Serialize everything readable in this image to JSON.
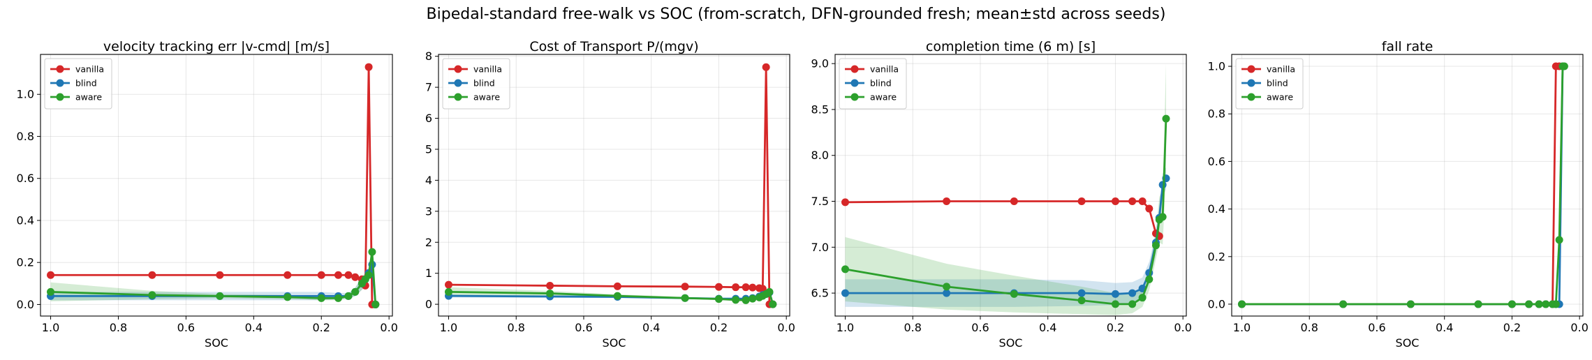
{
  "suptitle": "Bipedal-standard free-walk vs SOC (from-scratch, DFN-grounded fresh; mean±std across seeds)",
  "legend": [
    "vanilla",
    "blind",
    "aware"
  ],
  "colors": {
    "vanilla": "#d62728",
    "blind": "#1f77b4",
    "aware": "#2ca02c"
  },
  "chart_data": [
    {
      "type": "line",
      "title": "velocity tracking err |v-cmd| [m/s]",
      "xlabel": "SOC",
      "xlim": [
        1.03,
        -0.01
      ],
      "ylim": [
        -0.055,
        1.19
      ],
      "xticks": [
        1.0,
        0.8,
        0.6,
        0.4,
        0.2,
        0.0
      ],
      "xtick_labels": [
        "1.0",
        "0.8",
        "0.6",
        "0.4",
        "0.2",
        "0.0"
      ],
      "yticks": [
        0.0,
        0.2,
        0.4,
        0.6,
        0.8,
        1.0
      ],
      "ytick_labels": [
        "0.0",
        "0.2",
        "0.4",
        "0.6",
        "0.8",
        "1.0"
      ],
      "grid": true,
      "legend_position": "upper-left",
      "series": [
        {
          "name": "vanilla",
          "x": [
            1.0,
            0.7,
            0.5,
            0.3,
            0.2,
            0.15,
            0.12,
            0.1,
            0.08,
            0.07,
            0.06,
            0.05,
            0.04
          ],
          "y": [
            0.14,
            0.14,
            0.14,
            0.14,
            0.14,
            0.14,
            0.14,
            0.13,
            0.12,
            0.09,
            1.13,
            0.0,
            0.0
          ]
        },
        {
          "name": "blind",
          "x": [
            1.0,
            0.7,
            0.5,
            0.3,
            0.2,
            0.15,
            0.12,
            0.1,
            0.08,
            0.07,
            0.06,
            0.05,
            0.04
          ],
          "y": [
            0.04,
            0.04,
            0.04,
            0.04,
            0.04,
            0.04,
            0.04,
            0.06,
            0.1,
            0.12,
            0.15,
            0.19,
            0.0
          ],
          "band": [
            0.02,
            0.02,
            0.02,
            0.02,
            0.02,
            0.015,
            0.015,
            0.02,
            0.03,
            0.03,
            0.03,
            0.03,
            0.0
          ]
        },
        {
          "name": "aware",
          "x": [
            1.0,
            0.7,
            0.5,
            0.3,
            0.2,
            0.15,
            0.12,
            0.1,
            0.08,
            0.07,
            0.06,
            0.05,
            0.04
          ],
          "y": [
            0.06,
            0.045,
            0.04,
            0.035,
            0.03,
            0.03,
            0.04,
            0.06,
            0.1,
            0.12,
            0.14,
            0.25,
            0.0
          ],
          "band": [
            0.045,
            0.02,
            0.01,
            0.01,
            0.01,
            0.01,
            0.01,
            0.02,
            0.03,
            0.03,
            0.03,
            0.04,
            0.0
          ]
        }
      ]
    },
    {
      "type": "line",
      "title": "Cost of Transport P/(mgv)",
      "xlabel": "SOC",
      "xlim": [
        1.03,
        -0.01
      ],
      "ylim": [
        -0.38,
        8.06
      ],
      "xticks": [
        1.0,
        0.8,
        0.6,
        0.4,
        0.2,
        0.0
      ],
      "xtick_labels": [
        "1.0",
        "0.8",
        "0.6",
        "0.4",
        "0.2",
        "0.0"
      ],
      "yticks": [
        0,
        1,
        2,
        3,
        4,
        5,
        6,
        7,
        8
      ],
      "ytick_labels": [
        "0",
        "1",
        "2",
        "3",
        "4",
        "5",
        "6",
        "7",
        "8"
      ],
      "grid": true,
      "legend_position": "upper-left",
      "series": [
        {
          "name": "vanilla",
          "x": [
            1.0,
            0.7,
            0.5,
            0.3,
            0.2,
            0.15,
            0.12,
            0.1,
            0.08,
            0.07,
            0.06,
            0.05,
            0.04
          ],
          "y": [
            0.63,
            0.6,
            0.58,
            0.57,
            0.56,
            0.55,
            0.55,
            0.54,
            0.52,
            0.5,
            7.65,
            0.0,
            0.0
          ]
        },
        {
          "name": "blind",
          "x": [
            1.0,
            0.7,
            0.5,
            0.3,
            0.2,
            0.15,
            0.12,
            0.1,
            0.08,
            0.07,
            0.06,
            0.05,
            0.04
          ],
          "y": [
            0.27,
            0.25,
            0.24,
            0.2,
            0.18,
            0.18,
            0.18,
            0.2,
            0.25,
            0.3,
            0.33,
            0.38,
            0.0
          ],
          "band": [
            0.05,
            0.04,
            0.04,
            0.03,
            0.03,
            0.03,
            0.03,
            0.04,
            0.05,
            0.05,
            0.05,
            0.05,
            0.0
          ]
        },
        {
          "name": "aware",
          "x": [
            1.0,
            0.7,
            0.5,
            0.3,
            0.2,
            0.15,
            0.12,
            0.1,
            0.08,
            0.07,
            0.06,
            0.05,
            0.04
          ],
          "y": [
            0.4,
            0.35,
            0.27,
            0.2,
            0.17,
            0.14,
            0.13,
            0.18,
            0.22,
            0.27,
            0.33,
            0.4,
            0.0
          ],
          "band": [
            0.15,
            0.08,
            0.05,
            0.04,
            0.03,
            0.03,
            0.03,
            0.04,
            0.05,
            0.05,
            0.05,
            0.06,
            0.0
          ]
        }
      ]
    },
    {
      "type": "line",
      "title": "completion time (6 m) [s]",
      "xlabel": "SOC",
      "xlim": [
        1.03,
        -0.01
      ],
      "ylim": [
        6.25,
        9.1
      ],
      "xticks": [
        1.0,
        0.8,
        0.6,
        0.4,
        0.2,
        0.0
      ],
      "xtick_labels": [
        "1.0",
        "0.8",
        "0.6",
        "0.4",
        "0.2",
        "0.0"
      ],
      "yticks": [
        6.5,
        7.0,
        7.5,
        8.0,
        8.5,
        9.0
      ],
      "ytick_labels": [
        "6.5",
        "7.0",
        "7.5",
        "8.0",
        "8.5",
        "9.0"
      ],
      "grid": true,
      "legend_position": "upper-left",
      "series": [
        {
          "name": "vanilla",
          "x": [
            1.0,
            0.7,
            0.5,
            0.3,
            0.2,
            0.15,
            0.12,
            0.1,
            0.08,
            0.07
          ],
          "y": [
            7.49,
            7.5,
            7.5,
            7.5,
            7.5,
            7.5,
            7.5,
            7.42,
            7.15,
            7.12
          ]
        },
        {
          "name": "blind",
          "x": [
            1.0,
            0.7,
            0.5,
            0.3,
            0.2,
            0.15,
            0.12,
            0.1,
            0.08,
            0.07,
            0.06,
            0.05
          ],
          "y": [
            6.5,
            6.5,
            6.5,
            6.5,
            6.49,
            6.5,
            6.55,
            6.72,
            7.05,
            7.32,
            7.68,
            7.75
          ],
          "band": [
            0.15,
            0.15,
            0.15,
            0.14,
            0.12,
            0.12,
            0.12,
            0.12,
            0.12,
            0.12,
            0.12,
            0.12
          ]
        },
        {
          "name": "aware",
          "x": [
            1.0,
            0.7,
            0.5,
            0.3,
            0.2,
            0.15,
            0.12,
            0.1,
            0.08,
            0.07,
            0.06,
            0.05
          ],
          "y": [
            6.76,
            6.57,
            6.49,
            6.42,
            6.38,
            6.38,
            6.45,
            6.65,
            7.02,
            7.3,
            7.33,
            8.4
          ],
          "band": [
            0.35,
            0.25,
            0.2,
            0.15,
            0.12,
            0.1,
            0.1,
            0.12,
            0.15,
            0.25,
            0.3,
            0.6
          ]
        }
      ]
    },
    {
      "type": "line",
      "title": "fall rate",
      "xlabel": "SOC",
      "xlim": [
        1.03,
        -0.01
      ],
      "ylim": [
        -0.05,
        1.05
      ],
      "xticks": [
        1.0,
        0.8,
        0.6,
        0.4,
        0.2,
        0.0
      ],
      "xtick_labels": [
        "1.0",
        "0.8",
        "0.6",
        "0.4",
        "0.2",
        "0.0"
      ],
      "yticks": [
        0.0,
        0.2,
        0.4,
        0.6,
        0.8,
        1.0
      ],
      "ytick_labels": [
        "0.0",
        "0.2",
        "0.4",
        "0.6",
        "0.8",
        "1.0"
      ],
      "grid": true,
      "legend_position": "upper-left",
      "series": [
        {
          "name": "vanilla",
          "x": [
            1.0,
            0.7,
            0.5,
            0.3,
            0.2,
            0.15,
            0.12,
            0.1,
            0.08,
            0.07,
            0.06
          ],
          "y": [
            0,
            0,
            0,
            0,
            0,
            0,
            0,
            0,
            0,
            1.0,
            1.0
          ]
        },
        {
          "name": "blind",
          "x": [
            1.0,
            0.7,
            0.5,
            0.3,
            0.2,
            0.15,
            0.12,
            0.1,
            0.08,
            0.07,
            0.06,
            0.05
          ],
          "y": [
            0,
            0,
            0,
            0,
            0,
            0,
            0,
            0,
            0,
            0,
            0,
            1.0
          ]
        },
        {
          "name": "aware",
          "x": [
            1.0,
            0.7,
            0.5,
            0.3,
            0.2,
            0.15,
            0.12,
            0.1,
            0.08,
            0.07,
            0.06,
            0.05,
            0.045
          ],
          "y": [
            0,
            0,
            0,
            0,
            0,
            0,
            0,
            0,
            0,
            0,
            0.27,
            1.0,
            1.0
          ]
        }
      ]
    }
  ]
}
